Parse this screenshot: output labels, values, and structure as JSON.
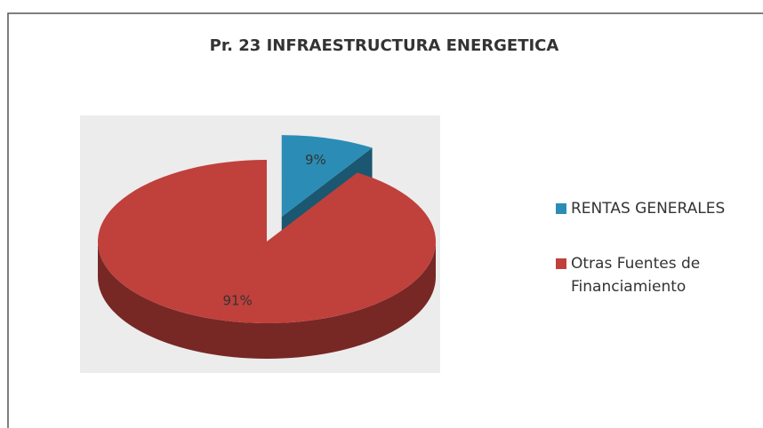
{
  "chart_data": {
    "type": "pie",
    "title": "Pr. 23  INFRAESTRUCTURA ENERGETICA",
    "categories": [
      "RENTAS GENERALES",
      "Otras Fuentes de Financiamiento"
    ],
    "values": [
      9,
      91
    ],
    "value_labels": [
      "9%",
      "91%"
    ],
    "colors": [
      "#2b8db5",
      "#c0403c"
    ],
    "legend": "right",
    "exploded": [
      true,
      false
    ]
  }
}
